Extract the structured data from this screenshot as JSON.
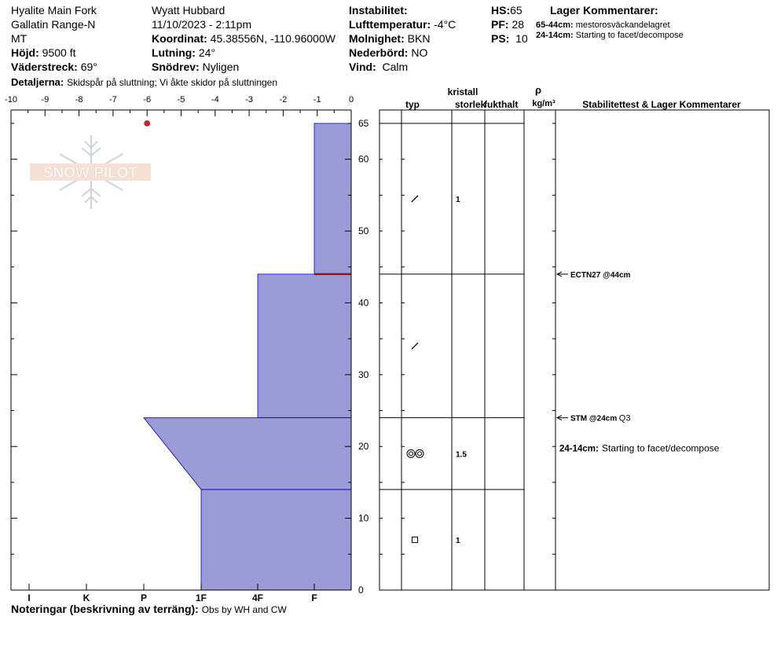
{
  "header": {
    "location_line1": "Hyalite Main Fork",
    "location_line2": "Gallatin Range-N",
    "location_line3": "MT",
    "elevation_label": "Höjd:",
    "elevation_value": "9500 ft",
    "aspect_label": "Väderstreck:",
    "aspect_value": "69°",
    "details_label": "Detaljerna:",
    "details_value": "Skidspår på sluttning;  Vi åkte skidor på sluttningen",
    "observer": "Wyatt Hubbard",
    "datetime": "11/10/2023 - 2:11pm",
    "coord_label": "Koordinat:",
    "coord_value": "45.38556N, -110.96000W",
    "slope_label": "Lutning:",
    "slope_value": "24°",
    "drift_label": "Snödrev:",
    "drift_value": "Nyligen",
    "instability_label": "Instabilitet:",
    "airtemp_label": "Lufttemperatur:",
    "airtemp_value": "-4°C",
    "sky_label": "Molnighet:",
    "sky_value": "BKN",
    "precip_label": "Nederbörd:",
    "precip_value": "NO",
    "wind_label": "Vind:",
    "wind_value": "Calm",
    "hs_label": "HS:",
    "hs_value": "65",
    "pf_label": "PF:",
    "pf_value": "28",
    "ps_label": "PS:",
    "ps_value": "10",
    "layer_comments_title": "Lager Kommentarer:",
    "layer_comments": [
      {
        "range": "65-44cm:",
        "text": "mestorosväckandelagret"
      },
      {
        "range": "24-14cm:",
        "text": "Starting to facet/decompose"
      }
    ]
  },
  "footer": {
    "notes_label": "Noteringar (beskrivning av terräng):",
    "notes_value": "Obs by WH and CW"
  },
  "logo_text": "SNOW PILOT",
  "colors": {
    "hardness_fill": "#9b9bd6",
    "hardness_stroke": "#0000c8",
    "weak_layer": "#a01010",
    "temp_point": "#d42020"
  },
  "columns": {
    "crystal_header": "kristall",
    "type": "typ",
    "size": "storlek",
    "moisture": "fukthalt",
    "density_symbol": "ρ",
    "density_unit": "kg/m³",
    "stability": "Stabilitettest & Lager Kommentarer"
  },
  "chart_data": {
    "type": "snow-profile",
    "temp_axis": {
      "ticks": [
        "-10",
        "-9",
        "-8",
        "-7",
        "-6",
        "-5",
        "-4",
        "-3",
        "-2",
        "-1",
        "0"
      ],
      "range": [
        -10,
        0
      ]
    },
    "height_axis": {
      "range": [
        0,
        65
      ],
      "ticks": [
        "0",
        "10",
        "20",
        "30",
        "40",
        "50",
        "60",
        "65"
      ]
    },
    "hardness_axis": {
      "labels": [
        "I",
        "K",
        "P",
        "1F",
        "4F",
        "F"
      ]
    },
    "temperature_points": [
      {
        "depth_cm": 65,
        "temp_c": -6
      }
    ],
    "layers": [
      {
        "top": 65,
        "bottom": 44,
        "hardness_top": "F",
        "hardness_bottom": "F",
        "crystal": "decomposing",
        "size": "1"
      },
      {
        "top": 44,
        "bottom": 24,
        "hardness_top": "4F",
        "hardness_bottom": "4F",
        "crystal": "decomposing",
        "size": ""
      },
      {
        "top": 24,
        "bottom": 14,
        "hardness_top": "P",
        "hardness_bottom": "1F",
        "crystal": "rounded",
        "size": "1.5"
      },
      {
        "top": 14,
        "bottom": 0,
        "hardness_top": "1F",
        "hardness_bottom": "1F",
        "crystal": "faceted",
        "size": "1"
      }
    ],
    "weak_layer_cm": 44,
    "tests": [
      {
        "depth_cm": 44,
        "label": "ECTN27 @44cm",
        "extra": ""
      },
      {
        "depth_cm": 24,
        "label": "STM @24cm",
        "extra": "Q3"
      }
    ],
    "profile_comment": {
      "depth_cm": 19,
      "range": "24-14cm:",
      "text": "Starting to facet/decompose"
    }
  }
}
